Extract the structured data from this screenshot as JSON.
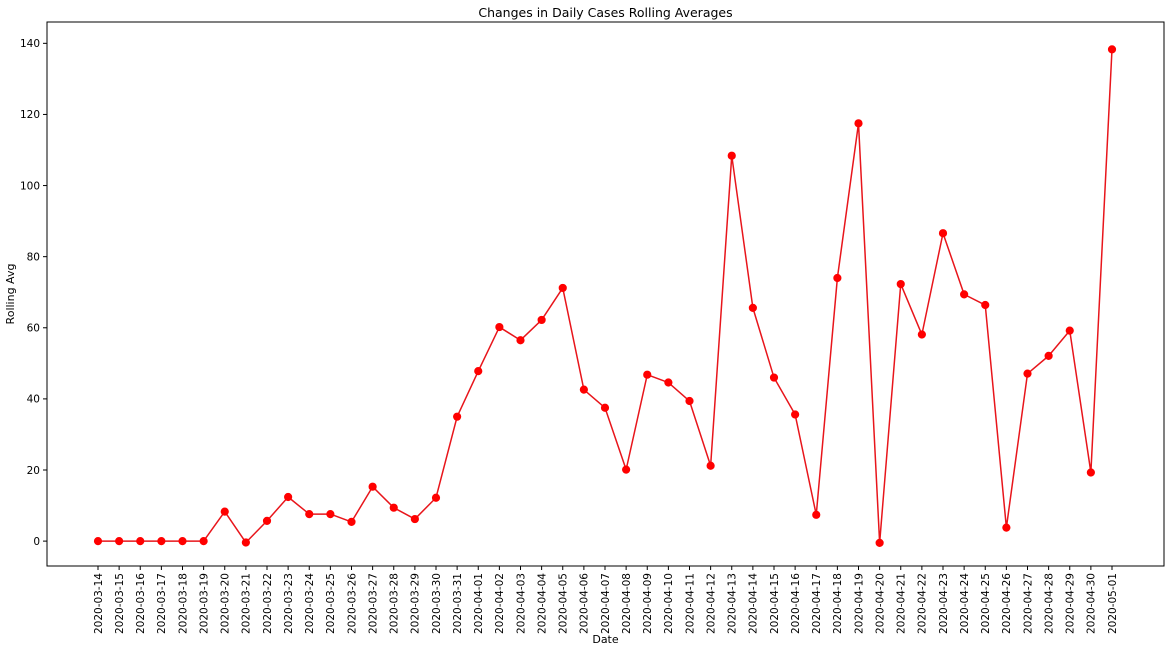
{
  "chart_data": {
    "type": "line",
    "title": "Changes in Daily Cases Rolling Averages",
    "xlabel": "Date",
    "ylabel": "Rolling Avg",
    "ylim": [
      -7,
      146
    ],
    "yticks": [
      0,
      20,
      40,
      60,
      80,
      100,
      120,
      140
    ],
    "grid": false,
    "legend": "none",
    "marker": "circle",
    "colors": {
      "line": "#e8151b",
      "marker": "#ff0000",
      "axis": "#000000"
    },
    "x": [
      "2020-03-14",
      "2020-03-15",
      "2020-03-16",
      "2020-03-17",
      "2020-03-18",
      "2020-03-19",
      "2020-03-20",
      "2020-03-21",
      "2020-03-22",
      "2020-03-23",
      "2020-03-24",
      "2020-03-25",
      "2020-03-26",
      "2020-03-27",
      "2020-03-28",
      "2020-03-29",
      "2020-03-30",
      "2020-03-31",
      "2020-04-01",
      "2020-04-02",
      "2020-04-03",
      "2020-04-04",
      "2020-04-05",
      "2020-04-06",
      "2020-04-07",
      "2020-04-08",
      "2020-04-09",
      "2020-04-10",
      "2020-04-11",
      "2020-04-12",
      "2020-04-13",
      "2020-04-14",
      "2020-04-15",
      "2020-04-16",
      "2020-04-17",
      "2020-04-18",
      "2020-04-19",
      "2020-04-20",
      "2020-04-21",
      "2020-04-22",
      "2020-04-23",
      "2020-04-24",
      "2020-04-25",
      "2020-04-26",
      "2020-04-27",
      "2020-04-28",
      "2020-04-29",
      "2020-04-30",
      "2020-05-01"
    ],
    "series": [
      {
        "values": [
          0,
          0,
          0,
          0,
          0,
          0,
          8.3,
          -0.4,
          5.7,
          12.4,
          7.6,
          7.6,
          5.4,
          15.3,
          9.4,
          6.2,
          12.2,
          35.0,
          47.8,
          60.2,
          56.5,
          62.2,
          71.2,
          42.6,
          37.5,
          20.1,
          46.8,
          44.6,
          39.4,
          21.2,
          108.4,
          65.6,
          46.0,
          35.6,
          7.4,
          74.0,
          117.5,
          -0.5,
          72.3,
          58.1,
          86.6,
          69.4,
          66.4,
          3.8,
          47.1,
          52.1,
          59.2,
          19.3,
          138.3
        ]
      }
    ]
  }
}
